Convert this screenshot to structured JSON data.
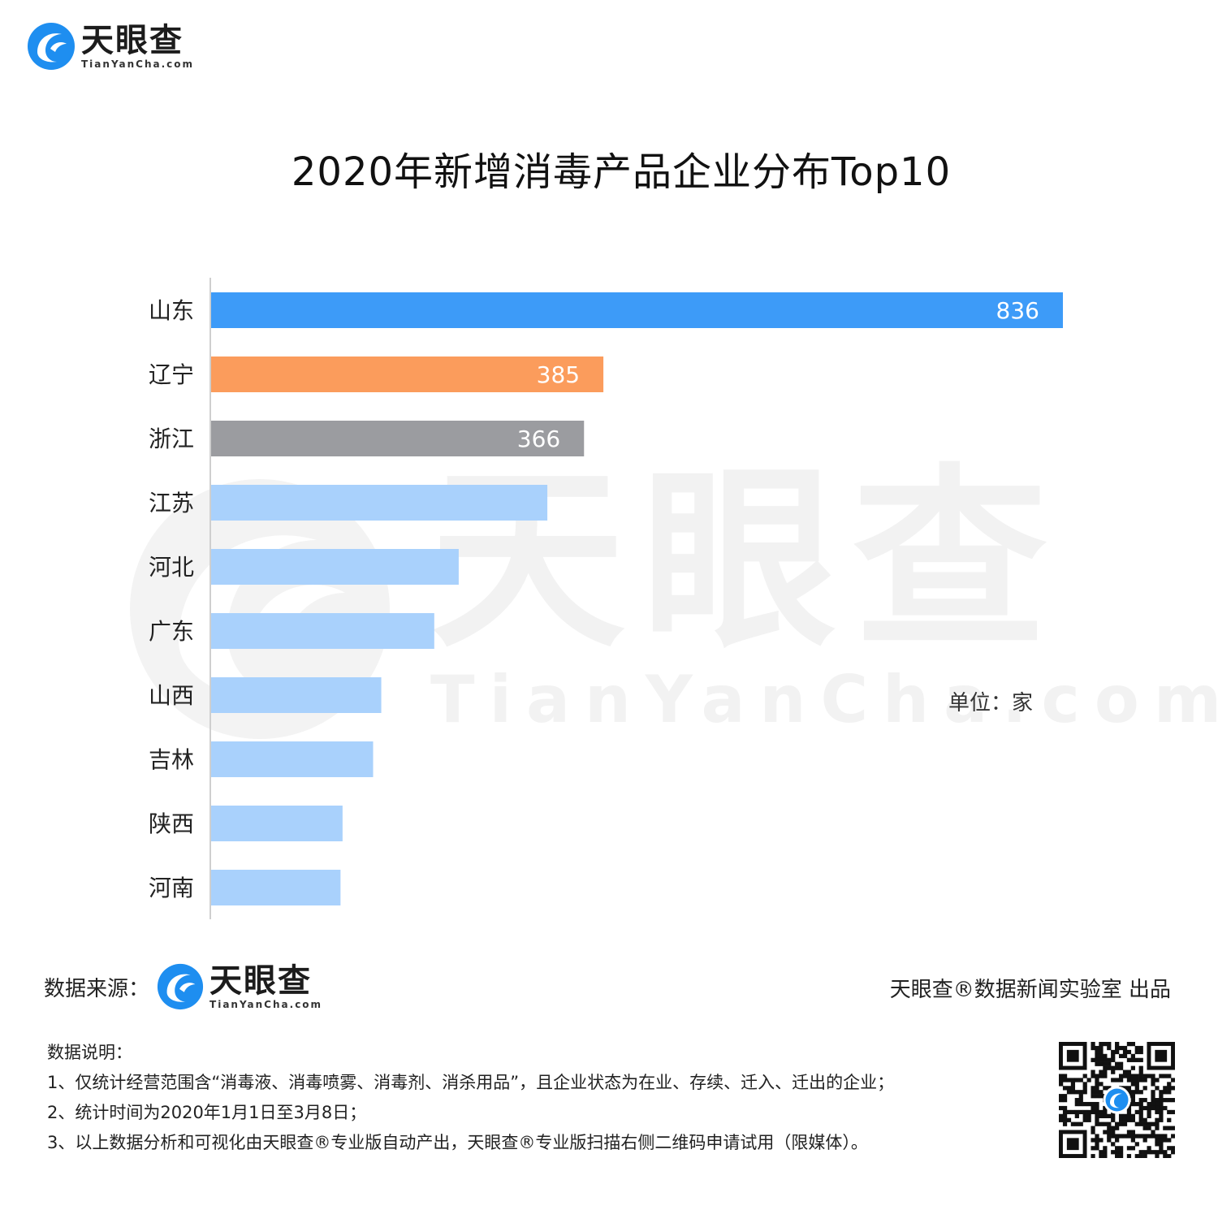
{
  "header": {
    "logo": {
      "name_cn": "天眼查",
      "name_en": "TianYanCha.com"
    }
  },
  "watermark": {
    "name_cn": "天眼查",
    "name_en": "TianYanCha.com"
  },
  "chart_data": {
    "type": "bar",
    "orientation": "horizontal",
    "title": "2020年新增消毒产品企业分布Top10",
    "unit_label": "单位：家",
    "categories": [
      "山东",
      "辽宁",
      "浙江",
      "江苏",
      "河北",
      "广东",
      "山西",
      "吉林",
      "陕西",
      "河南"
    ],
    "values": [
      836,
      385,
      366,
      330,
      243,
      219,
      167,
      159,
      129,
      127
    ],
    "data_labels": [
      "836",
      "385",
      "366",
      "",
      "",
      "",
      "",
      "",
      "",
      ""
    ],
    "bar_colors": [
      "#3d9bf8",
      "#fb9c5c",
      "#9b9ca0",
      "#a9d1fc",
      "#a9d1fc",
      "#a9d1fc",
      "#a9d1fc",
      "#a9d1fc",
      "#a9d1fc",
      "#a9d1fc"
    ],
    "xlim": [
      0,
      836
    ],
    "grid": false,
    "legend": "none"
  },
  "footer": {
    "source_label": "数据来源：",
    "credit": "天眼查®数据新闻实验室 出品",
    "notes_title": "数据说明：",
    "notes": [
      "1、仅统计经营范围含“消毒液、消毒喷雾、消毒剂、消杀用品”，且企业状态为在业、存续、迁入、迁出的企业；",
      "2、统计时间为2020年1月1日至3月8日；",
      "3、以上数据分析和可视化由天眼查®专业版自动产出，天眼查®专业版扫描右侧二维码申请试用（限媒体）。"
    ]
  },
  "qr_code": {
    "icon": "qr-code-icon"
  }
}
